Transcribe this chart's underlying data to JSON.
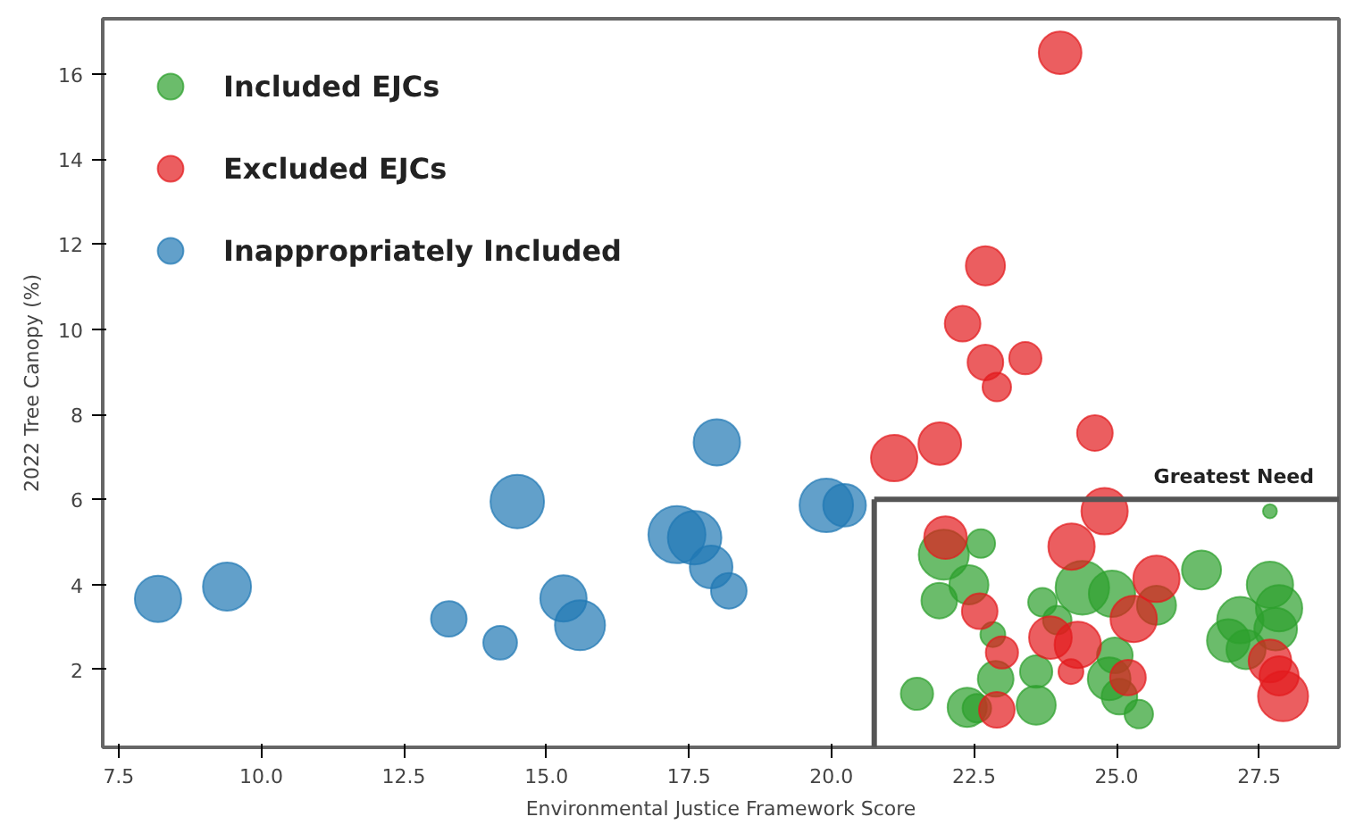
{
  "chart_data": {
    "type": "bubble",
    "xlabel": "Environmental Justice Framework Score",
    "ylabel": "2022 Tree Canopy (%)",
    "xlim": [
      7.22,
      28.9
    ],
    "ylim": [
      0.17,
      17.3
    ],
    "xticks": [
      {
        "value": 7.5,
        "label": "7.5"
      },
      {
        "value": 10,
        "label": "10.0"
      },
      {
        "value": 12.5,
        "label": "12.5"
      },
      {
        "value": 15,
        "label": "15.0"
      },
      {
        "value": 17.5,
        "label": "17.5"
      },
      {
        "value": 20,
        "label": "20.0"
      },
      {
        "value": 22.5,
        "label": "22.5"
      },
      {
        "value": 25,
        "label": "25.0"
      },
      {
        "value": 27.5,
        "label": "27.5"
      }
    ],
    "yticks": [
      2,
      4,
      6,
      8,
      10,
      12,
      14,
      16
    ],
    "grid": false,
    "legend": "top left",
    "ref_lines": [
      {
        "axis": "x",
        "value": 20.75,
        "color": "#555555"
      },
      {
        "axis": "y",
        "value": 6,
        "label": "Greatest Need",
        "color": "#555555"
      }
    ],
    "series": [
      {
        "name": "Included EJCs",
        "color": "#2ca02c",
        "x": [
          27.69,
          21.97,
          22.62,
          22.41,
          21.89,
          23.7,
          24.4,
          24.92,
          25.7,
          26.49,
          27.69,
          27.85,
          27.17,
          26.96,
          27.27,
          27.79,
          23.96,
          22.83,
          24.97,
          24.87,
          25.05,
          25.39,
          23.59,
          23.59,
          22.88,
          22.38,
          22.55,
          21.5
        ],
        "values": [
          5.72,
          4.7,
          4.96,
          3.99,
          3.62,
          3.58,
          3.92,
          3.78,
          3.51,
          4.34,
          3.99,
          3.44,
          3.16,
          2.68,
          2.47,
          2.95,
          3.16,
          2.82,
          2.33,
          1.78,
          1.36,
          0.95,
          1.95,
          1.16,
          1.78,
          1.11,
          1.09,
          1.43
        ],
        "sizes": [
          0.06,
          0.77,
          0.25,
          0.47,
          0.39,
          0.25,
          0.88,
          0.66,
          0.47,
          0.47,
          0.66,
          0.66,
          0.66,
          0.56,
          0.47,
          0.56,
          0.25,
          0.19,
          0.39,
          0.56,
          0.39,
          0.25,
          0.32,
          0.47,
          0.39,
          0.47,
          0.25,
          0.32
        ]
      },
      {
        "name": "Excluded EJCs",
        "color": "#e31a1c",
        "x": [
          24.01,
          22.7,
          22.3,
          22.7,
          23.4,
          22.9,
          24.62,
          21.1,
          21.9,
          24.79,
          22.0,
          24.21,
          25.7,
          22.6,
          25.3,
          23.84,
          24.32,
          22.99,
          24.2,
          25.2,
          22.9,
          27.69,
          27.85,
          27.92
        ],
        "values": [
          16.5,
          11.49,
          10.13,
          9.22,
          9.32,
          8.64,
          7.56,
          6.97,
          7.31,
          5.72,
          5.1,
          4.89,
          4.13,
          3.37,
          3.19,
          2.75,
          2.58,
          2.4,
          1.95,
          1.81,
          1.05,
          2.2,
          1.85,
          1.37
        ],
        "sizes": [
          0.56,
          0.47,
          0.39,
          0.39,
          0.32,
          0.25,
          0.39,
          0.66,
          0.56,
          0.66,
          0.56,
          0.66,
          0.66,
          0.39,
          0.66,
          0.56,
          0.66,
          0.32,
          0.19,
          0.39,
          0.39,
          0.56,
          0.47,
          0.77
        ]
      },
      {
        "name": "Inappropriately Included",
        "color": "#1f77b4",
        "x": [
          8.19,
          9.4,
          14.49,
          13.29,
          14.19,
          15.3,
          15.59,
          17.99,
          17.29,
          17.6,
          17.89,
          18.2,
          19.91,
          20.23
        ],
        "values": [
          3.66,
          3.95,
          5.95,
          3.19,
          2.63,
          3.67,
          3.04,
          7.34,
          5.17,
          5.1,
          4.41,
          3.85,
          5.86,
          5.86
        ],
        "sizes": [
          0.66,
          0.71,
          0.88,
          0.39,
          0.35,
          0.66,
          0.77,
          0.66,
          1,
          0.88,
          0.56,
          0.39,
          0.88,
          0.56
        ]
      }
    ]
  }
}
